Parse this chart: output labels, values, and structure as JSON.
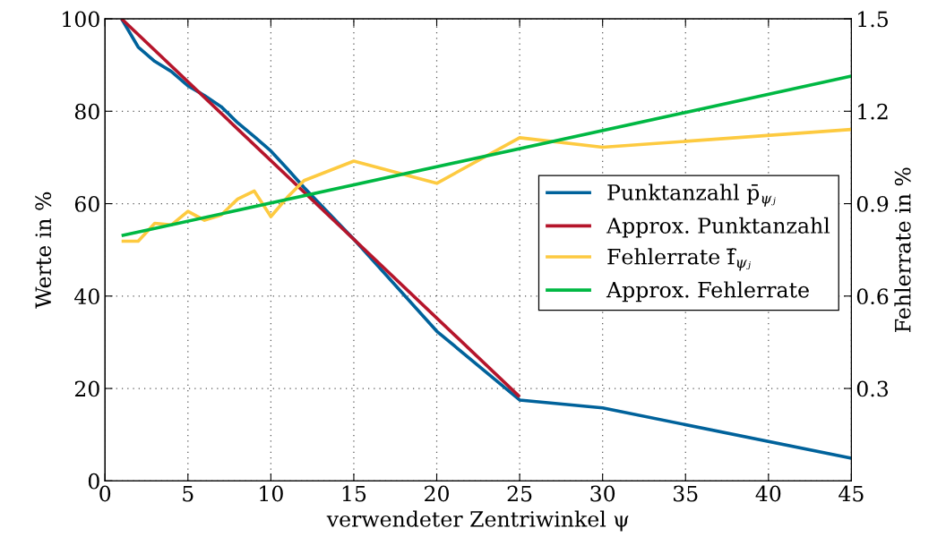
{
  "chart_data": {
    "type": "line",
    "xlabel": "verwendeter Zentriwinkel ψ",
    "ylabel": "Werte in %",
    "y2label": "Fehlerrate in %",
    "xlim": [
      0,
      45
    ],
    "xticks": [
      0,
      5,
      10,
      15,
      20,
      25,
      30,
      35,
      40,
      45
    ],
    "ylim": [
      0,
      100
    ],
    "yticks": [
      0,
      20,
      40,
      60,
      80,
      100
    ],
    "y2lim": [
      0,
      1.5
    ],
    "y2ticks": [
      0.3,
      0.6,
      0.9,
      1.2,
      1.5
    ],
    "grid": true,
    "legend": "right",
    "line_style": "solid",
    "marker": "none",
    "series": [
      {
        "name": "Punktanzahl p̄$_{ψⱼ}$",
        "color": "#00629b",
        "x": [
          1,
          2,
          3,
          4,
          5,
          6,
          7,
          8,
          9,
          10,
          11,
          12,
          15,
          20,
          25,
          30,
          45
        ],
        "values": [
          100,
          93.9,
          90.8,
          88.6,
          85.5,
          83.4,
          81.0,
          77.5,
          74.5,
          71.4,
          67.5,
          63.5,
          52.3,
          32.4,
          17.5,
          15.8,
          4.9
        ]
      },
      {
        "name": "Approx. Punktanzahl",
        "color": "#b5152b",
        "x": [
          1,
          25
        ],
        "values": [
          100,
          18.2
        ]
      },
      {
        "name": "Fehlerrate f̄$_{ψⱼ}$",
        "color": "#fdca40",
        "axis": "y2",
        "x": [
          1,
          2,
          3,
          4,
          5,
          6,
          7,
          8,
          9,
          10,
          11,
          12,
          15,
          20,
          25,
          30,
          45
        ],
        "values": [
          0.778,
          0.778,
          0.836,
          0.831,
          0.875,
          0.846,
          0.863,
          0.915,
          0.941,
          0.858,
          0.921,
          0.975,
          1.038,
          0.966,
          1.114,
          1.083,
          1.141
        ]
      },
      {
        "name": "Approx. Fehlerrate",
        "color": "#00b843",
        "axis": "y2",
        "x": [
          1,
          45
        ],
        "values": [
          0.796,
          1.314
        ]
      }
    ]
  }
}
